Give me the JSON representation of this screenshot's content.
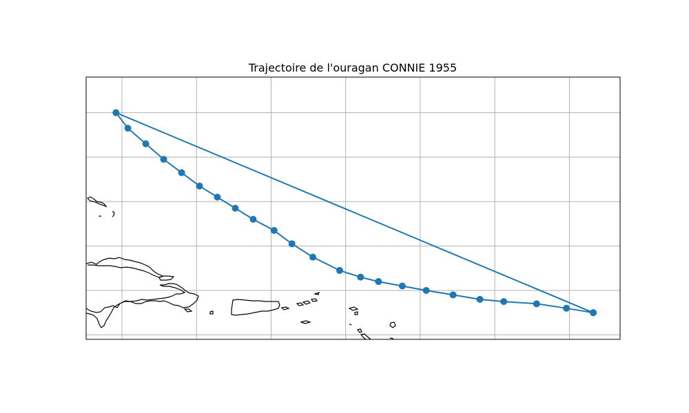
{
  "chart_data": {
    "type": "line",
    "title": "Trajectoire de l'ouragan CONNIE 1955",
    "xlabel": "",
    "ylabel": "",
    "grid": true,
    "map_background": true,
    "xlim": [
      -71.2,
      -53.3
    ],
    "ylim": [
      16.9,
      22.8
    ],
    "series": [
      {
        "marker": "circle",
        "color": "#1f77b4",
        "x": [
          -54.2,
          -55.1,
          -56.1,
          -57.2,
          -58.0,
          -58.9,
          -59.8,
          -60.6,
          -61.4,
          -62.0,
          -62.7,
          -63.6,
          -64.3,
          -64.9,
          -65.6,
          -66.2,
          -66.8,
          -67.4,
          -68.0,
          -68.6,
          -69.2,
          -69.8,
          -70.2,
          -54.2
        ],
        "y": [
          17.5,
          17.6,
          17.7,
          17.75,
          17.8,
          17.9,
          18.0,
          18.1,
          18.2,
          18.3,
          18.45,
          18.75,
          19.05,
          19.35,
          19.6,
          19.85,
          20.1,
          20.35,
          20.65,
          20.95,
          21.3,
          21.65,
          22.0,
          17.5
        ]
      }
    ],
    "colors": {
      "track": "#1f77b4",
      "grid": "#b0b0b0",
      "coast": "#000000"
    }
  }
}
